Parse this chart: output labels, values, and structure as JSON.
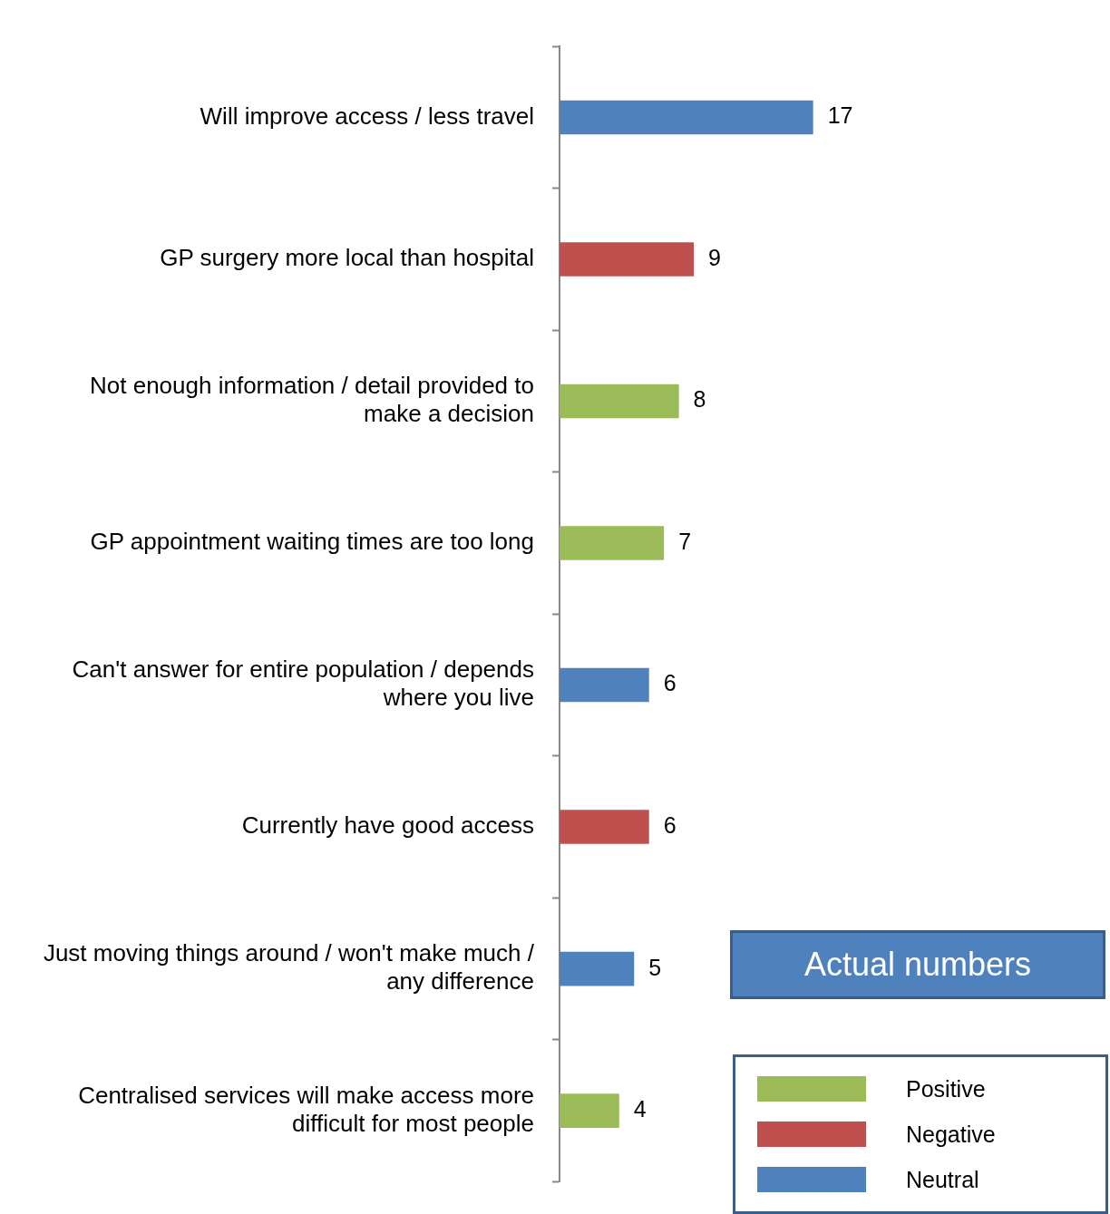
{
  "chart_data": {
    "type": "bar",
    "orientation": "horizontal",
    "stacked": true,
    "title": "Actual numbers",
    "categories": [
      "Will improve access / less travel",
      "GP surgery more local than hospital",
      "Not enough information / detail provided to make a decision",
      "GP appointment waiting times are too long",
      "Can't answer for entire population / depends where you live",
      "Currently have good access",
      "Just moving things around / won't make much / any difference",
      "Centralised services will make access more difficult for most people"
    ],
    "series": [
      {
        "name": "Positive",
        "color": "#9bbb59",
        "values": [
          null,
          null,
          8,
          7,
          null,
          null,
          null,
          4
        ]
      },
      {
        "name": "Negative",
        "color": "#c0504d",
        "values": [
          null,
          9,
          null,
          null,
          null,
          6,
          null,
          null
        ]
      },
      {
        "name": "Neutral",
        "color": "#4f81bd",
        "values": [
          17,
          null,
          null,
          null,
          6,
          null,
          5,
          null
        ]
      }
    ],
    "data_labels": true,
    "legend": "bottom right",
    "tick_labels": "y",
    "grid": false
  }
}
